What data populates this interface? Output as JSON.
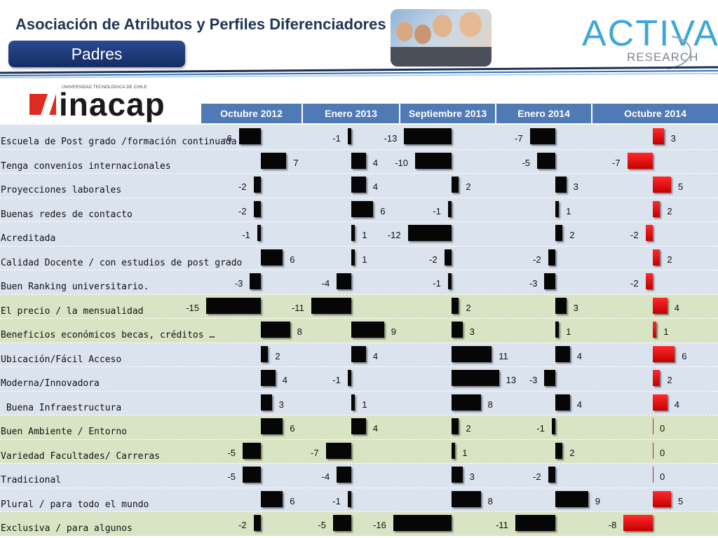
{
  "header": {
    "title": "Asociación de Atributos y Perfiles Diferenciadores",
    "subtitle": "Padres"
  },
  "brand_logo": {
    "main": "ACTIVA",
    "sub": "RESEARCH"
  },
  "org_logo": {
    "tagline": "UNIVERSIDAD TECNOLÓGICA DE CHILE",
    "word": "inacap"
  },
  "colors": {
    "header_fill": "#4f7ab6",
    "band_blue": "#dbe3ef",
    "band_green": "#d9e4c5",
    "bar_dark": "#060606",
    "bar_red": "#e01010",
    "title": "#1f3555",
    "pill": "#1f3b7a",
    "logo_accent": "#3fa7d6"
  },
  "chart_data": {
    "type": "bar",
    "columns": [
      "Octubre 2012",
      "Enero 2013",
      "Septiembre 2013",
      "Enero 2014",
      "Octubre 2014"
    ],
    "rows": [
      {
        "label": "Escuela de Post grado /formación continuada",
        "values": [
          -6,
          -1,
          -13,
          -7,
          3
        ],
        "band": "blue"
      },
      {
        "label": "Tenga convenios internacionales",
        "values": [
          7,
          4,
          -10,
          -5,
          -7
        ],
        "band": "blue"
      },
      {
        "label": "Proyecciones laborales",
        "values": [
          -2,
          4,
          2,
          3,
          5
        ],
        "band": "blue"
      },
      {
        "label": "Buenas redes de contacto",
        "values": [
          -2,
          6,
          -1,
          1,
          2
        ],
        "band": "blue"
      },
      {
        "label": "Acreditada",
        "values": [
          -1,
          1,
          -12,
          2,
          -2
        ],
        "band": "blue"
      },
      {
        "label": "Calidad Docente / con estudios de post grado",
        "values": [
          6,
          1,
          -2,
          -2,
          2
        ],
        "band": "blue"
      },
      {
        "label": "Buen Ranking universitario.",
        "values": [
          -3,
          -4,
          -1,
          -3,
          -2
        ],
        "band": "blue"
      },
      {
        "label": "El precio / la mensualidad",
        "values": [
          -15,
          -11,
          2,
          3,
          4
        ],
        "band": "green"
      },
      {
        "label": "Beneficios económicos becas, créditos …",
        "values": [
          8,
          9,
          3,
          1,
          1
        ],
        "band": "green"
      },
      {
        "label": "Ubicación/Fácil Acceso",
        "values": [
          2,
          4,
          11,
          4,
          6
        ],
        "band": "blue"
      },
      {
        "label": "Moderna/Innovadora",
        "values": [
          4,
          -1,
          13,
          -3,
          2
        ],
        "band": "blue"
      },
      {
        "label": " Buena Infraestructura",
        "values": [
          3,
          1,
          8,
          4,
          4
        ],
        "band": "blue"
      },
      {
        "label": "Buen Ambiente / Entorno",
        "values": [
          6,
          4,
          2,
          -1,
          0
        ],
        "band": "green"
      },
      {
        "label": "Variedad Facultades/ Carreras",
        "values": [
          -5,
          -7,
          1,
          2,
          0
        ],
        "band": "green"
      },
      {
        "label": "Tradicional",
        "values": [
          -5,
          -4,
          3,
          -2,
          0
        ],
        "band": "blue"
      },
      {
        "label": "Plural / para todo el mundo",
        "values": [
          6,
          -1,
          8,
          9,
          5
        ],
        "band": "blue"
      },
      {
        "label": "Exclusiva / para algunos",
        "values": [
          -2,
          -5,
          -16,
          -11,
          -8
        ],
        "band": "green"
      }
    ]
  }
}
